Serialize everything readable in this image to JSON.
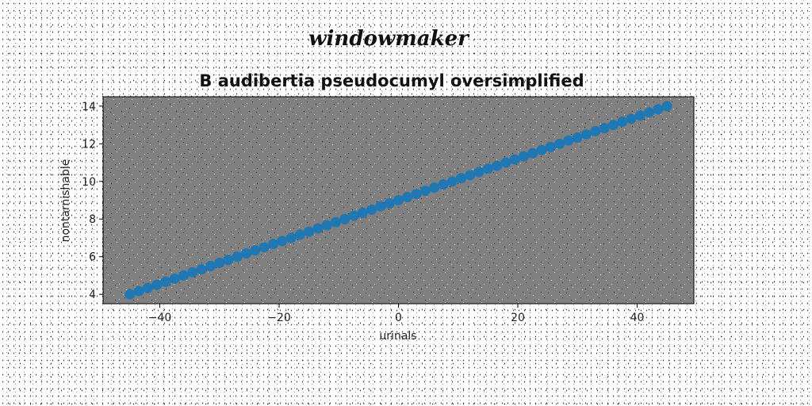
{
  "suptitle": "windowmaker",
  "chart_data": {
    "type": "scatter",
    "title": "B audibertia pseudocumyl oversimplified",
    "xlabel": "urinals",
    "ylabel": "nontarnishable",
    "xlim": [
      -49.5,
      49.5
    ],
    "ylim": [
      3.5,
      14.5
    ],
    "xticks": [
      -40,
      -20,
      0,
      20,
      40
    ],
    "yticks": [
      4,
      6,
      8,
      10,
      12,
      14
    ],
    "xtick_labels": [
      "−40",
      "−20",
      "0",
      "20",
      "40"
    ],
    "ytick_labels": [
      "4",
      "6",
      "8",
      "10",
      "12",
      "14"
    ],
    "grid": false,
    "legend": "none",
    "colors": {
      "marker": "#1f77b4",
      "plot_background": "#808080"
    },
    "series": [
      {
        "x": [
          -45,
          -43.5,
          -42,
          -40.5,
          -39,
          -37.5,
          -36,
          -34.5,
          -33,
          -31.5,
          -30,
          -28.5,
          -27,
          -25.5,
          -24,
          -22.5,
          -21,
          -19.5,
          -18,
          -16.5,
          -15,
          -13.5,
          -12,
          -10.5,
          -9,
          -7.5,
          -6,
          -4.5,
          -3,
          -1.5,
          0,
          1.5,
          3,
          4.5,
          6,
          7.5,
          9,
          10.5,
          12,
          13.5,
          15,
          16.5,
          18,
          19.5,
          21,
          22.5,
          24,
          25.5,
          27,
          28.5,
          30,
          31.5,
          33,
          34.5,
          36,
          37.5,
          39,
          40.5,
          42,
          43.5,
          45
        ],
        "y": [
          4.0,
          4.17,
          4.33,
          4.5,
          4.67,
          4.83,
          5.0,
          5.17,
          5.33,
          5.5,
          5.67,
          5.83,
          6.0,
          6.17,
          6.33,
          6.5,
          6.67,
          6.83,
          7.0,
          7.17,
          7.33,
          7.5,
          7.67,
          7.83,
          8.0,
          8.17,
          8.33,
          8.5,
          8.67,
          8.83,
          9.0,
          9.17,
          9.33,
          9.5,
          9.67,
          9.83,
          10.0,
          10.17,
          10.33,
          10.5,
          10.67,
          10.83,
          11.0,
          11.17,
          11.33,
          11.5,
          11.67,
          11.83,
          12.0,
          12.17,
          12.33,
          12.5,
          12.67,
          12.83,
          13.0,
          13.17,
          13.33,
          13.5,
          13.67,
          13.83,
          14.0
        ]
      }
    ]
  }
}
